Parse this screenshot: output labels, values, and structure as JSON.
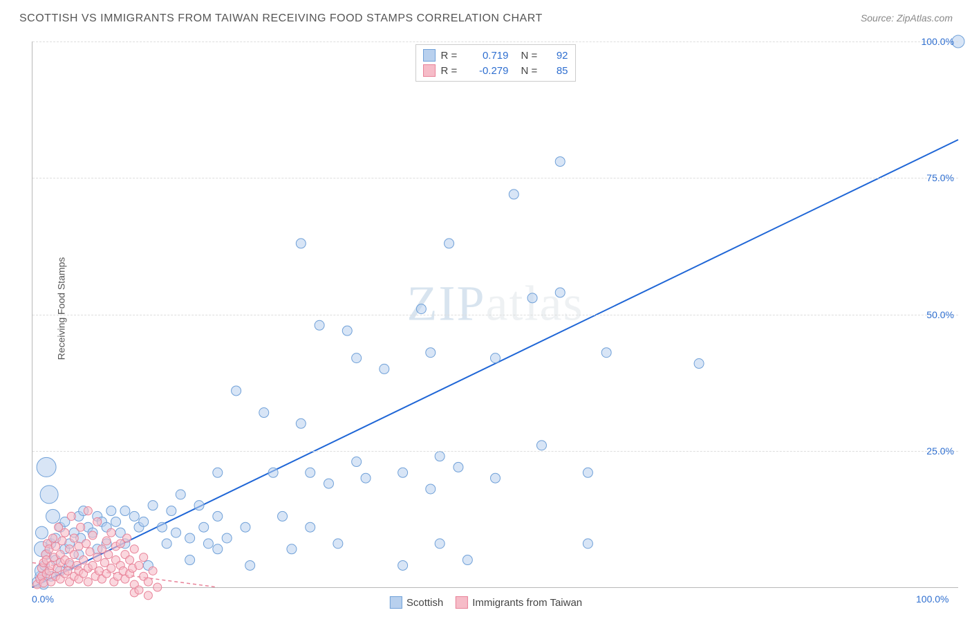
{
  "header": {
    "title": "SCOTTISH VS IMMIGRANTS FROM TAIWAN RECEIVING FOOD STAMPS CORRELATION CHART",
    "source_prefix": "Source: ",
    "source_name": "ZipAtlas.com"
  },
  "chart": {
    "type": "scatter",
    "y_axis_label": "Receiving Food Stamps",
    "xlim": [
      0,
      100
    ],
    "ylim": [
      0,
      100
    ],
    "x_ticks": [
      {
        "val": 0,
        "label": "0.0%"
      },
      {
        "val": 100,
        "label": "100.0%"
      }
    ],
    "y_ticks": [
      {
        "val": 25,
        "label": "25.0%"
      },
      {
        "val": 50,
        "label": "50.0%"
      },
      {
        "val": 75,
        "label": "75.0%"
      },
      {
        "val": 100,
        "label": "100.0%"
      }
    ],
    "grid_color": "#dddddd",
    "axis_color": "#b8b8b8",
    "background_color": "#ffffff",
    "watermark": "ZIPatlas",
    "series": [
      {
        "name": "Scottish",
        "fill": "#b8d0ee",
        "stroke": "#6fa0d8",
        "fill_opacity": 0.55,
        "marker_radius_default": 7,
        "trend": {
          "x1": 0,
          "y1": 0,
          "x2": 100,
          "y2": 82,
          "color": "#1f66d6",
          "width": 2,
          "dash": "none"
        },
        "R": 0.719,
        "N": 92,
        "points": [
          {
            "x": 0.5,
            "y": 1
          },
          {
            "x": 0.8,
            "y": 2
          },
          {
            "x": 1,
            "y": 3,
            "r": 10
          },
          {
            "x": 1,
            "y": 7,
            "r": 11
          },
          {
            "x": 1,
            "y": 10,
            "r": 9
          },
          {
            "x": 1.2,
            "y": 0.5
          },
          {
            "x": 1.3,
            "y": 4
          },
          {
            "x": 1.5,
            "y": 6
          },
          {
            "x": 1.5,
            "y": 22,
            "r": 14
          },
          {
            "x": 1.8,
            "y": 17,
            "r": 13
          },
          {
            "x": 2,
            "y": 8
          },
          {
            "x": 2,
            "y": 2
          },
          {
            "x": 2.2,
            "y": 13,
            "r": 10
          },
          {
            "x": 2.5,
            "y": 5
          },
          {
            "x": 2.5,
            "y": 9
          },
          {
            "x": 3,
            "y": 11
          },
          {
            "x": 3,
            "y": 3
          },
          {
            "x": 3.5,
            "y": 12
          },
          {
            "x": 3.5,
            "y": 7
          },
          {
            "x": 4,
            "y": 8
          },
          {
            "x": 4,
            "y": 4
          },
          {
            "x": 4.5,
            "y": 10
          },
          {
            "x": 5,
            "y": 13
          },
          {
            "x": 5,
            "y": 6
          },
          {
            "x": 5.2,
            "y": 9
          },
          {
            "x": 5.5,
            "y": 14
          },
          {
            "x": 6,
            "y": 11
          },
          {
            "x": 6.5,
            "y": 10
          },
          {
            "x": 7,
            "y": 13
          },
          {
            "x": 7,
            "y": 7
          },
          {
            "x": 7.5,
            "y": 12
          },
          {
            "x": 8,
            "y": 11
          },
          {
            "x": 8,
            "y": 8
          },
          {
            "x": 8.5,
            "y": 14
          },
          {
            "x": 9,
            "y": 12
          },
          {
            "x": 9.5,
            "y": 10
          },
          {
            "x": 10,
            "y": 14
          },
          {
            "x": 10,
            "y": 8
          },
          {
            "x": 11,
            "y": 13
          },
          {
            "x": 11.5,
            "y": 11
          },
          {
            "x": 12,
            "y": 12
          },
          {
            "x": 12.5,
            "y": 4
          },
          {
            "x": 13,
            "y": 15
          },
          {
            "x": 14,
            "y": 11
          },
          {
            "x": 14.5,
            "y": 8
          },
          {
            "x": 15,
            "y": 14
          },
          {
            "x": 15.5,
            "y": 10
          },
          {
            "x": 16,
            "y": 17
          },
          {
            "x": 17,
            "y": 9
          },
          {
            "x": 17,
            "y": 5
          },
          {
            "x": 18,
            "y": 15
          },
          {
            "x": 18.5,
            "y": 11
          },
          {
            "x": 19,
            "y": 8
          },
          {
            "x": 20,
            "y": 21
          },
          {
            "x": 20,
            "y": 13
          },
          {
            "x": 20,
            "y": 7
          },
          {
            "x": 21,
            "y": 9
          },
          {
            "x": 22,
            "y": 36
          },
          {
            "x": 23,
            "y": 11
          },
          {
            "x": 23.5,
            "y": 4
          },
          {
            "x": 25,
            "y": 32
          },
          {
            "x": 26,
            "y": 21
          },
          {
            "x": 27,
            "y": 13
          },
          {
            "x": 28,
            "y": 7
          },
          {
            "x": 29,
            "y": 30
          },
          {
            "x": 29,
            "y": 63
          },
          {
            "x": 30,
            "y": 21
          },
          {
            "x": 30,
            "y": 11
          },
          {
            "x": 31,
            "y": 48
          },
          {
            "x": 32,
            "y": 19
          },
          {
            "x": 33,
            "y": 8
          },
          {
            "x": 34,
            "y": 47
          },
          {
            "x": 35,
            "y": 23
          },
          {
            "x": 35,
            "y": 42
          },
          {
            "x": 36,
            "y": 20
          },
          {
            "x": 38,
            "y": 40
          },
          {
            "x": 40,
            "y": 21
          },
          {
            "x": 40,
            "y": 4
          },
          {
            "x": 42,
            "y": 51
          },
          {
            "x": 43,
            "y": 18
          },
          {
            "x": 43,
            "y": 43
          },
          {
            "x": 44,
            "y": 24
          },
          {
            "x": 44,
            "y": 8
          },
          {
            "x": 45,
            "y": 63
          },
          {
            "x": 46,
            "y": 22
          },
          {
            "x": 47,
            "y": 5
          },
          {
            "x": 50,
            "y": 42
          },
          {
            "x": 50,
            "y": 20
          },
          {
            "x": 52,
            "y": 72
          },
          {
            "x": 54,
            "y": 53
          },
          {
            "x": 55,
            "y": 26
          },
          {
            "x": 57,
            "y": 78
          },
          {
            "x": 57,
            "y": 54
          },
          {
            "x": 60,
            "y": 21
          },
          {
            "x": 60,
            "y": 8
          },
          {
            "x": 62,
            "y": 43
          },
          {
            "x": 72,
            "y": 41
          },
          {
            "x": 100,
            "y": 100,
            "r": 9
          }
        ]
      },
      {
        "name": "Immigrants from Taiwan",
        "fill": "#f6bcc8",
        "stroke": "#e88298",
        "fill_opacity": 0.6,
        "marker_radius_default": 6,
        "trend": {
          "x1": 0,
          "y1": 4.5,
          "x2": 20,
          "y2": 0,
          "color": "#e88298",
          "width": 1.5,
          "dash": "5,4"
        },
        "R": -0.279,
        "N": 85,
        "points": [
          {
            "x": 0.5,
            "y": 0.5
          },
          {
            "x": 0.8,
            "y": 1.5
          },
          {
            "x": 1,
            "y": 2
          },
          {
            "x": 1,
            "y": 3.5
          },
          {
            "x": 1.2,
            "y": 4.5
          },
          {
            "x": 1.2,
            "y": 0.8
          },
          {
            "x": 1.4,
            "y": 6
          },
          {
            "x": 1.5,
            "y": 2.5
          },
          {
            "x": 1.5,
            "y": 5
          },
          {
            "x": 1.6,
            "y": 8
          },
          {
            "x": 1.8,
            "y": 3
          },
          {
            "x": 1.8,
            "y": 7
          },
          {
            "x": 2,
            "y": 4
          },
          {
            "x": 2,
            "y": 1
          },
          {
            "x": 2.2,
            "y": 9
          },
          {
            "x": 2.3,
            "y": 5.5
          },
          {
            "x": 2.5,
            "y": 2
          },
          {
            "x": 2.5,
            "y": 7.5
          },
          {
            "x": 2.7,
            "y": 3.5
          },
          {
            "x": 2.8,
            "y": 11
          },
          {
            "x": 3,
            "y": 1.5
          },
          {
            "x": 3,
            "y": 6
          },
          {
            "x": 3,
            "y": 4.5
          },
          {
            "x": 3.2,
            "y": 8.5
          },
          {
            "x": 3.5,
            "y": 2.5
          },
          {
            "x": 3.5,
            "y": 5
          },
          {
            "x": 3.5,
            "y": 10
          },
          {
            "x": 3.8,
            "y": 3
          },
          {
            "x": 4,
            "y": 7
          },
          {
            "x": 4,
            "y": 1
          },
          {
            "x": 4,
            "y": 4.5
          },
          {
            "x": 4.2,
            "y": 13
          },
          {
            "x": 4.5,
            "y": 2
          },
          {
            "x": 4.5,
            "y": 6
          },
          {
            "x": 4.5,
            "y": 9
          },
          {
            "x": 4.8,
            "y": 4
          },
          {
            "x": 5,
            "y": 1.5
          },
          {
            "x": 5,
            "y": 7.5
          },
          {
            "x": 5,
            "y": 3
          },
          {
            "x": 5.2,
            "y": 11
          },
          {
            "x": 5.5,
            "y": 5
          },
          {
            "x": 5.5,
            "y": 2.5
          },
          {
            "x": 5.8,
            "y": 8
          },
          {
            "x": 6,
            "y": 3.5
          },
          {
            "x": 6,
            "y": 14
          },
          {
            "x": 6,
            "y": 1
          },
          {
            "x": 6.2,
            "y": 6.5
          },
          {
            "x": 6.5,
            "y": 4
          },
          {
            "x": 6.5,
            "y": 9.5
          },
          {
            "x": 6.8,
            "y": 2
          },
          {
            "x": 7,
            "y": 5.5
          },
          {
            "x": 7,
            "y": 12
          },
          {
            "x": 7.2,
            "y": 3
          },
          {
            "x": 7.5,
            "y": 7
          },
          {
            "x": 7.5,
            "y": 1.5
          },
          {
            "x": 7.8,
            "y": 4.5
          },
          {
            "x": 8,
            "y": 8.5
          },
          {
            "x": 8,
            "y": 2.5
          },
          {
            "x": 8.2,
            "y": 6
          },
          {
            "x": 8.5,
            "y": 3.5
          },
          {
            "x": 8.5,
            "y": 10
          },
          {
            "x": 8.8,
            "y": 1
          },
          {
            "x": 9,
            "y": 5
          },
          {
            "x": 9,
            "y": 7.5
          },
          {
            "x": 9.2,
            "y": 2
          },
          {
            "x": 9.5,
            "y": 4
          },
          {
            "x": 9.5,
            "y": 8
          },
          {
            "x": 9.8,
            "y": 3
          },
          {
            "x": 10,
            "y": 6
          },
          {
            "x": 10,
            "y": 1.5
          },
          {
            "x": 10.2,
            "y": 9
          },
          {
            "x": 10.5,
            "y": 2.5
          },
          {
            "x": 10.5,
            "y": 5
          },
          {
            "x": 10.8,
            "y": 3.5
          },
          {
            "x": 11,
            "y": 7
          },
          {
            "x": 11,
            "y": 0.5
          },
          {
            "x": 11,
            "y": -1
          },
          {
            "x": 11.5,
            "y": 4
          },
          {
            "x": 11.5,
            "y": -0.5
          },
          {
            "x": 12,
            "y": 2
          },
          {
            "x": 12,
            "y": 5.5
          },
          {
            "x": 12.5,
            "y": 1
          },
          {
            "x": 12.5,
            "y": -1.5
          },
          {
            "x": 13,
            "y": 3
          },
          {
            "x": 13.5,
            "y": 0
          }
        ]
      }
    ]
  },
  "top_legend": {
    "rows": [
      {
        "swatch_fill": "#b8d0ee",
        "swatch_stroke": "#6fa0d8",
        "r_label": "R =",
        "r_val": "0.719",
        "n_label": "N =",
        "n_val": "92"
      },
      {
        "swatch_fill": "#f6bcc8",
        "swatch_stroke": "#e88298",
        "r_label": "R =",
        "r_val": "-0.279",
        "n_label": "N =",
        "n_val": "85"
      }
    ]
  },
  "bottom_legend": {
    "items": [
      {
        "swatch_fill": "#b8d0ee",
        "swatch_stroke": "#6fa0d8",
        "label": "Scottish"
      },
      {
        "swatch_fill": "#f6bcc8",
        "swatch_stroke": "#e88298",
        "label": "Immigrants from Taiwan"
      }
    ]
  }
}
